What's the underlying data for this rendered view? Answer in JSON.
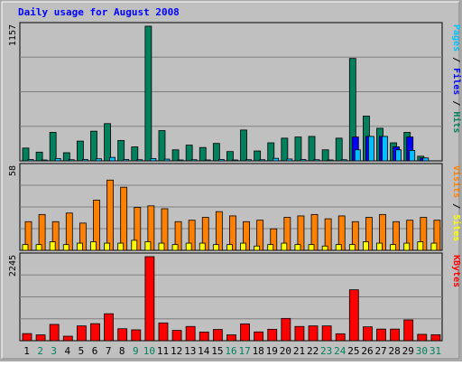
{
  "chart_data": {
    "type": "bar",
    "title": "Daily usage for August 2008",
    "x": [
      "1",
      "2",
      "3",
      "4",
      "5",
      "6",
      "7",
      "8",
      "9",
      "10",
      "11",
      "12",
      "13",
      "14",
      "15",
      "16",
      "17",
      "18",
      "19",
      "20",
      "21",
      "22",
      "23",
      "24",
      "25",
      "26",
      "27",
      "28",
      "29",
      "30",
      "31"
    ],
    "weekend_days": [
      "2",
      "3",
      "9",
      "10",
      "16",
      "17",
      "23",
      "24",
      "30",
      "31"
    ],
    "panels": [
      {
        "id": "hits",
        "ymax_label": "1157",
        "ylim": [
          0,
          1157
        ],
        "axis_label": "Hits / Files / Pages",
        "series": [
          {
            "name": "Hits",
            "color": "#00805c",
            "values": [
              110,
              75,
              245,
              70,
              170,
              255,
              320,
              175,
              120,
              1157,
              260,
              95,
              135,
              115,
              150,
              80,
              265,
              85,
              155,
              195,
              205,
              210,
              95,
              195,
              880,
              385,
              280,
              155,
              245,
              40,
              0
            ]
          },
          {
            "name": "Files",
            "color": "#0000ff",
            "values": [
              0,
              0,
              0,
              0,
              0,
              0,
              0,
              0,
              0,
              0,
              0,
              0,
              0,
              0,
              0,
              0,
              0,
              0,
              0,
              0,
              0,
              0,
              0,
              0,
              205,
              210,
              210,
              120,
              205,
              25,
              0
            ]
          },
          {
            "name": "Pages",
            "color": "#00c0ff",
            "values": [
              12,
              6,
              20,
              10,
              12,
              18,
              30,
              12,
              10,
              20,
              15,
              8,
              10,
              8,
              12,
              6,
              10,
              10,
              22,
              16,
              12,
              10,
              8,
              10,
              95,
              210,
              210,
              95,
              90,
              25,
              0
            ]
          }
        ]
      },
      {
        "id": "visits",
        "ymax_label": "58",
        "ylim": [
          0,
          58
        ],
        "axis_label": "Sites / Visits",
        "series": [
          {
            "name": "Visits",
            "color": "#ff8000",
            "values": [
              20,
              25,
              20,
              26,
              19,
              35,
              49,
              44,
              30,
              31,
              29,
              20,
              21,
              23,
              27,
              24,
              20,
              21,
              15,
              23,
              24,
              25,
              22,
              24,
              20,
              23,
              25,
              20,
              21,
              23,
              21
            ]
          },
          {
            "name": "Sites",
            "color": "#ffff00",
            "values": [
              4,
              4,
              6,
              4,
              5,
              6,
              5,
              5,
              7,
              6,
              5,
              4,
              5,
              5,
              4,
              4,
              5,
              3,
              4,
              5,
              4,
              4,
              3,
              4,
              4,
              6,
              5,
              4,
              5,
              6,
              5
            ]
          }
        ]
      },
      {
        "id": "kbytes",
        "ymax_label": "2245",
        "ylim": [
          0,
          2245
        ],
        "axis_label": "KBytes",
        "series": [
          {
            "name": "KBytes",
            "color": "#ff0000",
            "values": [
              190,
              155,
              435,
              120,
              395,
              455,
              720,
              320,
              290,
              2245,
              475,
              275,
              380,
              230,
              300,
              155,
              450,
              235,
              305,
              595,
              380,
              395,
              395,
              185,
              1360,
              370,
              310,
              310,
              555,
              170,
              160
            ]
          }
        ]
      }
    ]
  }
}
